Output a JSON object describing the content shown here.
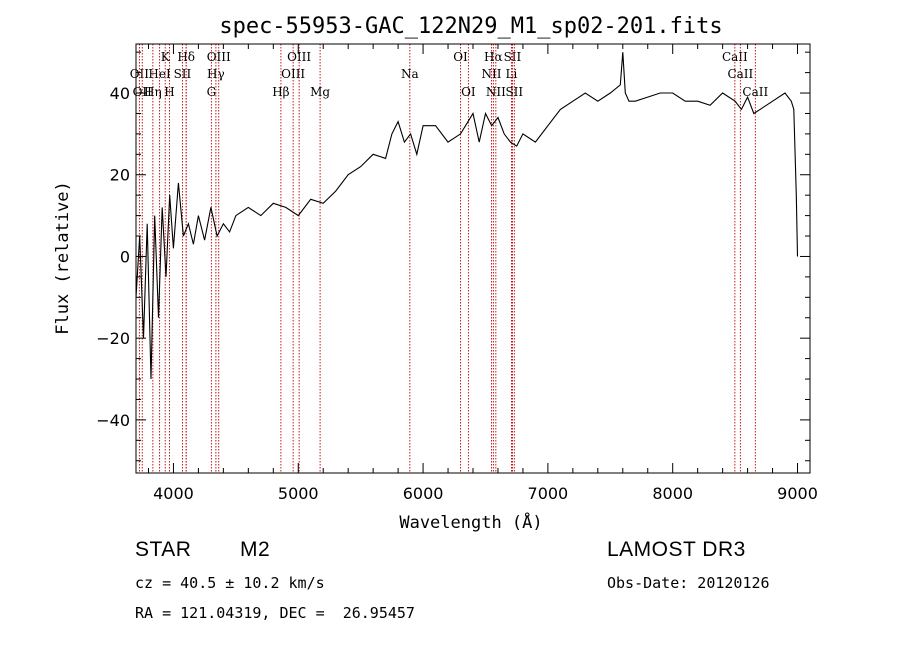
{
  "chart_data": {
    "type": "line",
    "title": "spec-55953-GAC_122N29_M1_sp02-201.fits",
    "xlabel": "Wavelength (Å)",
    "ylabel": "Flux (relative)",
    "xlim": [
      3700,
      9100
    ],
    "ylim": [
      -53,
      52
    ],
    "xticks": [
      4000,
      5000,
      6000,
      7000,
      8000,
      9000
    ],
    "yticks": [
      -40,
      -20,
      0,
      20,
      40
    ],
    "series": [
      {
        "name": "flux",
        "x": [
          3700,
          3730,
          3760,
          3790,
          3820,
          3850,
          3880,
          3910,
          3940,
          3970,
          4000,
          4040,
          4080,
          4120,
          4160,
          4200,
          4250,
          4300,
          4350,
          4400,
          4450,
          4500,
          4600,
          4700,
          4800,
          4900,
          5000,
          5100,
          5200,
          5300,
          5400,
          5500,
          5600,
          5700,
          5750,
          5800,
          5850,
          5900,
          5950,
          6000,
          6100,
          6200,
          6300,
          6400,
          6450,
          6500,
          6550,
          6600,
          6650,
          6700,
          6750,
          6800,
          6900,
          7000,
          7100,
          7200,
          7300,
          7400,
          7500,
          7580,
          7600,
          7620,
          7650,
          7700,
          7800,
          7900,
          8000,
          8100,
          8200,
          8300,
          8400,
          8500,
          8550,
          8600,
          8650,
          8700,
          8800,
          8900,
          8950,
          8970,
          8990,
          9000
        ],
        "y": [
          -10,
          5,
          -20,
          8,
          -30,
          10,
          -15,
          12,
          -5,
          15,
          2,
          18,
          5,
          8,
          3,
          10,
          4,
          12,
          5,
          8,
          6,
          10,
          12,
          10,
          13,
          12,
          10,
          14,
          13,
          16,
          20,
          22,
          25,
          24,
          30,
          33,
          28,
          30,
          25,
          32,
          32,
          28,
          30,
          35,
          28,
          35,
          32,
          34,
          30,
          28,
          27,
          30,
          28,
          32,
          36,
          38,
          40,
          38,
          40,
          42,
          50,
          40,
          38,
          38,
          39,
          40,
          40,
          38,
          38,
          37,
          40,
          38,
          36,
          39,
          35,
          36,
          38,
          40,
          38,
          36,
          15,
          0
        ]
      }
    ],
    "emission_lines": [
      {
        "wavelength": 3727,
        "label": "OII",
        "row": 2
      },
      {
        "wavelength": 3750,
        "label": "OII",
        "row": 3
      },
      {
        "wavelength": 3835,
        "label": "Hη",
        "row": 3
      },
      {
        "wavelength": 3889,
        "label": "HeI",
        "row": 2
      },
      {
        "wavelength": 3934,
        "label": "K",
        "row": 1
      },
      {
        "wavelength": 3968,
        "label": "H",
        "row": 3
      },
      {
        "wavelength": 4072,
        "label": "SII",
        "row": 2
      },
      {
        "wavelength": 4102,
        "label": "Hδ",
        "row": 1
      },
      {
        "wavelength": 4102,
        "label": "Hδ",
        "row": 1
      },
      {
        "wavelength": 4304,
        "label": "G",
        "row": 3
      },
      {
        "wavelength": 4340,
        "label": "Hγ",
        "row": 2
      },
      {
        "wavelength": 4363,
        "label": "OIII",
        "row": 1
      },
      {
        "wavelength": 4861,
        "label": "Hβ",
        "row": 3
      },
      {
        "wavelength": 4959,
        "label": "OIII",
        "row": 2
      },
      {
        "wavelength": 5007,
        "label": "OIII",
        "row": 1
      },
      {
        "wavelength": 5175,
        "label": "Mg",
        "row": 3
      },
      {
        "wavelength": 5894,
        "label": "Na",
        "row": 2
      },
      {
        "wavelength": 6300,
        "label": "OI",
        "row": 1
      },
      {
        "wavelength": 6363,
        "label": "OI",
        "row": 3
      },
      {
        "wavelength": 6548,
        "label": "NII",
        "row": 2
      },
      {
        "wavelength": 6563,
        "label": "Hα",
        "row": 1
      },
      {
        "wavelength": 6583,
        "label": "NII",
        "row": 3
      },
      {
        "wavelength": 6708,
        "label": "Li",
        "row": 2
      },
      {
        "wavelength": 6716,
        "label": "SII",
        "row": 1
      },
      {
        "wavelength": 6731,
        "label": "SII",
        "row": 3
      },
      {
        "wavelength": 8498,
        "label": "CaII",
        "row": 1
      },
      {
        "wavelength": 8542,
        "label": "CaII",
        "row": 2
      },
      {
        "wavelength": 8662,
        "label": "CaII",
        "row": 3
      }
    ]
  },
  "info": {
    "object_class": "STAR",
    "subclass": "M2",
    "survey": "LAMOST DR3",
    "cz": "cz = 40.5 ± 10.2 km/s",
    "obs_date": "Obs-Date: 20120126",
    "coords": "RA = 121.04319, DEC =  26.95457"
  }
}
